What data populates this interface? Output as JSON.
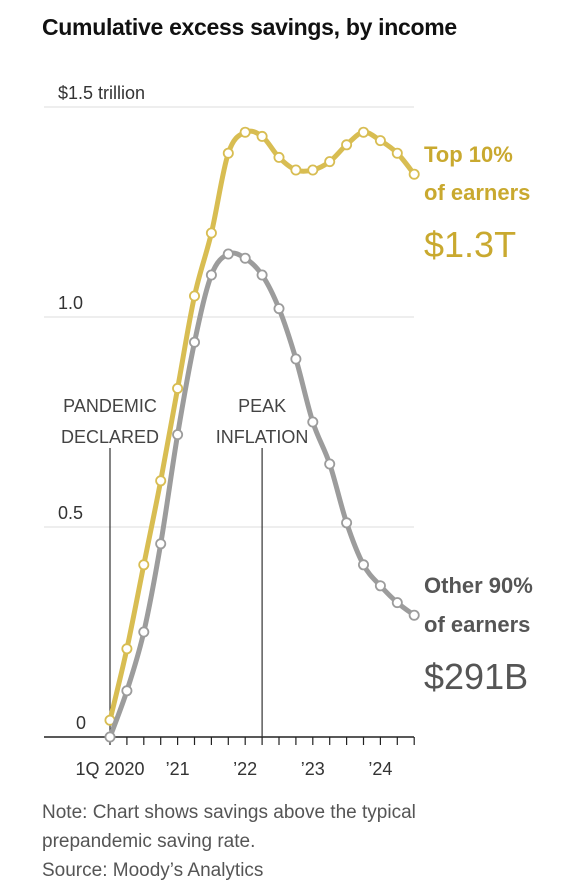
{
  "header": {
    "title": "Cumulative excess savings, by income"
  },
  "chart_data": {
    "type": "line",
    "title": "Cumulative excess savings, by income",
    "ylabel": "",
    "y_ticks": [
      {
        "value": 0,
        "label": "0"
      },
      {
        "value": 0.5,
        "label": "0.5"
      },
      {
        "value": 1.0,
        "label": "1.0"
      },
      {
        "value": 1.5,
        "label": "$1.5 trillion"
      }
    ],
    "ylim": [
      0,
      1.5
    ],
    "x_ticks": [
      {
        "index": 0,
        "label": "1Q 2020"
      },
      {
        "index": 4,
        "label": "’21"
      },
      {
        "index": 8,
        "label": "’22"
      },
      {
        "index": 12,
        "label": "’23"
      },
      {
        "index": 16,
        "label": "’24"
      }
    ],
    "x_count": 19,
    "grid": true,
    "series": [
      {
        "name": "Top 10% of earners",
        "color": "#d8bd52",
        "end_label_lines": [
          "Top 10%",
          "of earners"
        ],
        "end_value_label": "$1.3T",
        "values": [
          0.04,
          0.21,
          0.41,
          0.61,
          0.83,
          1.05,
          1.2,
          1.39,
          1.44,
          1.43,
          1.38,
          1.35,
          1.35,
          1.37,
          1.41,
          1.44,
          1.42,
          1.39,
          1.34
        ]
      },
      {
        "name": "Other 90% of earners",
        "color": "#9c9c9c",
        "end_label_lines": [
          "Other 90%",
          "of earners"
        ],
        "end_value_label": "$291B",
        "values": [
          0.0,
          0.11,
          0.25,
          0.46,
          0.72,
          0.94,
          1.1,
          1.15,
          1.14,
          1.1,
          1.02,
          0.9,
          0.75,
          0.65,
          0.51,
          0.41,
          0.36,
          0.32,
          0.29
        ]
      }
    ],
    "annotations": [
      {
        "index": 0,
        "lines": [
          "PANDEMIC",
          "DECLARED"
        ]
      },
      {
        "index": 9,
        "lines": [
          "PEAK",
          "INFLATION"
        ]
      }
    ]
  },
  "notes": {
    "line1": "Note: Chart shows savings above the typical",
    "line2": "prepandemic saving rate.",
    "source": "Source: Moody’s Analytics"
  }
}
